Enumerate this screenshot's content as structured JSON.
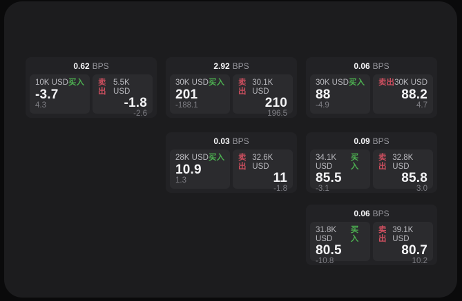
{
  "labels": {
    "unit": "BPS",
    "buy": "买入",
    "sell": "卖出"
  },
  "colors": {
    "bg": "#0a0a0b",
    "surface": "#1c1c1e",
    "card": "#222225",
    "panel": "#2b2b2e",
    "buy": "#4caf50",
    "sell": "#cd4f5f"
  },
  "cards": [
    {
      "bps": "0.62",
      "buy": {
        "amount": "10K USD",
        "price": "-3.7",
        "delta": "4.3"
      },
      "sell": {
        "amount": "5.5K USD",
        "price": "-1.8",
        "delta": "-2.6"
      }
    },
    {
      "bps": "2.92",
      "buy": {
        "amount": "30K USD",
        "price": "201",
        "delta": "-188.1"
      },
      "sell": {
        "amount": "30.1K USD",
        "price": "210",
        "delta": "196.5"
      }
    },
    {
      "bps": "0.06",
      "buy": {
        "amount": "30K USD",
        "price": "88",
        "delta": "-4.9"
      },
      "sell": {
        "amount": "30K USD",
        "price": "88.2",
        "delta": "4.7"
      }
    },
    {
      "bps": "0.03",
      "buy": {
        "amount": "28K USD",
        "price": "10.9",
        "delta": "1.3"
      },
      "sell": {
        "amount": "32.6K USD",
        "price": "11",
        "delta": "-1.8"
      }
    },
    {
      "bps": "0.09",
      "buy": {
        "amount": "34.1K USD",
        "price": "85.5",
        "delta": "-3.1"
      },
      "sell": {
        "amount": "32.8K USD",
        "price": "85.8",
        "delta": "3.0"
      }
    },
    {
      "bps": "0.06",
      "buy": {
        "amount": "31.8K USD",
        "price": "80.5",
        "delta": "-10.8"
      },
      "sell": {
        "amount": "39.1K USD",
        "price": "80.7",
        "delta": "10.2"
      }
    }
  ]
}
